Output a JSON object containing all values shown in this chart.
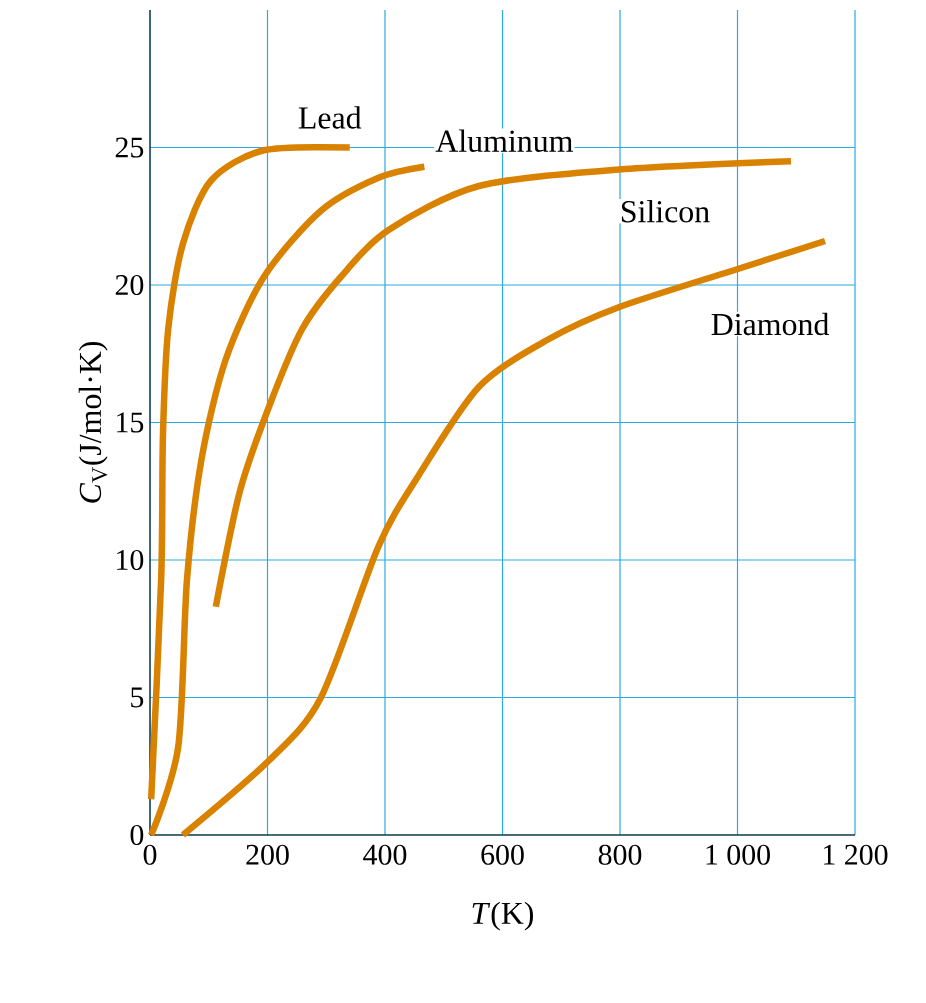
{
  "chart_data": {
    "type": "line",
    "xlabel": "*T*(K)",
    "ylabel": "*C*$_{V}$(J/mol·K)",
    "xlim": [
      0,
      1200
    ],
    "ylim": [
      0,
      30
    ],
    "xticks": [
      0,
      200,
      400,
      600,
      800,
      {
        "value": 1000,
        "label": "1 000"
      },
      {
        "value": 1200,
        "label": "1 200"
      }
    ],
    "yticks": [
      0,
      5,
      10,
      15,
      20,
      25
    ],
    "grid": true,
    "marker": "none",
    "line_style": "solid",
    "series": [
      {
        "name": "Lead",
        "color": "#d98200",
        "x": [
          2,
          19,
          22,
          31,
          56,
          104,
          194,
          340
        ],
        "values": [
          1.3,
          9.3,
          14.5,
          18.4,
          21.5,
          23.8,
          24.9,
          25
        ]
      },
      {
        "name": "Aluminum",
        "color": "#d98200",
        "x": [
          2,
          48,
          63,
          88,
          129,
          194,
          291,
          389,
          467
        ],
        "values": [
          0,
          3.2,
          9.3,
          13.7,
          17.3,
          20.3,
          22.7,
          23.9,
          24.3
        ]
      },
      {
        "name": "Silicon",
        "color": "#d98200",
        "x": [
          112,
          153,
          203,
          259,
          325,
          406,
          560,
          799,
          1091
        ],
        "values": [
          8.3,
          12.5,
          15.6,
          18.4,
          20.3,
          22.0,
          23.6,
          24.2,
          24.5
        ]
      },
      {
        "name": "Diamond",
        "color": "#d98200",
        "x": [
          56,
          202,
          291,
          389,
          455,
          560,
          676,
          799,
          1003,
          1149
        ],
        "values": [
          0,
          2.7,
          5.0,
          10.5,
          13.0,
          16.3,
          18.0,
          19.2,
          20.6,
          21.6
        ]
      }
    ]
  }
}
